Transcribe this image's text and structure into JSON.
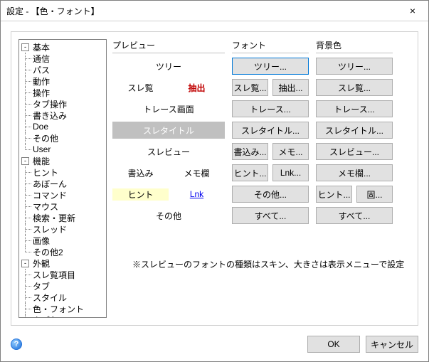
{
  "window": {
    "title": "設定 - 【色・フォント】",
    "close_glyph": "×"
  },
  "tree": [
    {
      "label": "基本",
      "children": [
        "通信",
        "パス",
        "動作",
        "操作",
        "タブ操作",
        "書き込み",
        "Doe",
        "その他",
        "User"
      ]
    },
    {
      "label": "機能",
      "children": [
        "ヒント",
        "あぼーん",
        "コマンド",
        "マウス",
        "検索・更新",
        "スレッド",
        "画像",
        "その他2"
      ]
    },
    {
      "label": "外観",
      "children": [
        "スレ覧項目",
        "タブ",
        "スタイル",
        "色・フォント",
        "タブ色"
      ]
    }
  ],
  "preview": {
    "heading": "プレビュー",
    "rows": [
      {
        "kind": "single",
        "label": "ツリー"
      },
      {
        "kind": "split",
        "left": "スレ覧",
        "right": "抽出",
        "right_style": "red"
      },
      {
        "kind": "single",
        "label": "トレース画面"
      },
      {
        "kind": "single",
        "label": "スレタイトル",
        "style": "selected"
      },
      {
        "kind": "single",
        "label": "スレビュー"
      },
      {
        "kind": "split",
        "left": "書込み",
        "right": "メモ欄"
      },
      {
        "kind": "split",
        "left": "ヒント",
        "left_style": "hint",
        "right": "Lnk",
        "right_style": "link"
      },
      {
        "kind": "single",
        "label": "その他"
      }
    ]
  },
  "font": {
    "heading": "フォント",
    "rows": [
      [
        "ツリー..."
      ],
      [
        "スレ覧...",
        "抽出..."
      ],
      [
        "トレース..."
      ],
      [
        "スレタイトル..."
      ],
      [
        "書込み...",
        "メモ..."
      ],
      [
        "ヒント...",
        "Lnk..."
      ],
      [
        "その他..."
      ],
      [
        "すべて..."
      ]
    ],
    "focused": [
      0,
      0
    ]
  },
  "bgcolor": {
    "heading": "背景色",
    "rows": [
      [
        "ツリー..."
      ],
      [
        "スレ覧..."
      ],
      [
        "トレース..."
      ],
      [
        "スレタイトル..."
      ],
      [
        "スレビュー..."
      ],
      [
        "メモ欄..."
      ],
      [
        "ヒント...",
        "固..."
      ],
      [
        "すべて..."
      ]
    ]
  },
  "note": "※スレビューのフォントの種類はスキン、大きさは表示メニューで設定",
  "footer": {
    "ok": "OK",
    "cancel": "キャンセル"
  },
  "colors": {
    "selected_bg": "#c0c0c0",
    "selected_fg": "#ffffff",
    "red": "#c00000",
    "hint_bg": "#ffffcc",
    "link": "#0000ee"
  }
}
